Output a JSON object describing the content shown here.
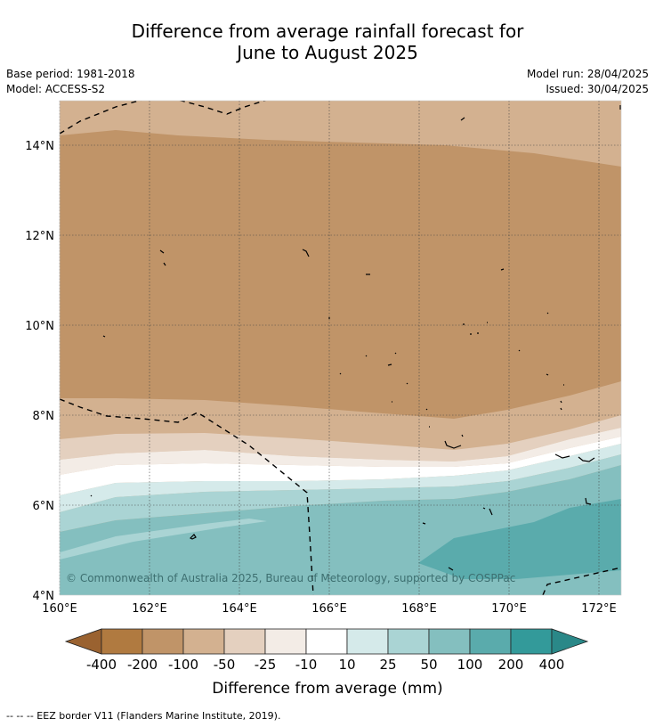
{
  "header": {
    "title_line1": "Difference from average rainfall forecast for",
    "title_line2": "June to August 2025",
    "base_period": "Base period: 1981-2018",
    "model": "Model: ACCESS-S2",
    "model_run": "Model run: 28/04/2025",
    "issued": "Issued: 30/04/2025"
  },
  "map": {
    "lat_labels": [
      "14°N",
      "12°N",
      "10°N",
      "8°N",
      "6°N",
      "4°N"
    ],
    "lon_labels": [
      "160°E",
      "162°E",
      "164°E",
      "166°E",
      "168°E",
      "170°E",
      "172°E"
    ],
    "copyright": "© Commonwealth of Australia 2025, Bureau of Meteorology, supported by COSPPac"
  },
  "colorbar": {
    "labels": [
      "-400",
      "-200",
      "-100",
      "-50",
      "-25",
      "-10",
      "10",
      "25",
      "50",
      "100",
      "200",
      "400"
    ],
    "colors": [
      "#9a6230",
      "#b07a40",
      "#c09468",
      "#d3b190",
      "#e4d0bf",
      "#f3ece6",
      "#ffffff",
      "#d5eaea",
      "#aad4d4",
      "#84bfbf",
      "#5aabac",
      "#339a9a",
      "#2a8888"
    ],
    "title": "Difference from average (mm)"
  },
  "footnote": "--  --  -- EEZ border V11 (Flanders Marine Institute, 2019)."
}
